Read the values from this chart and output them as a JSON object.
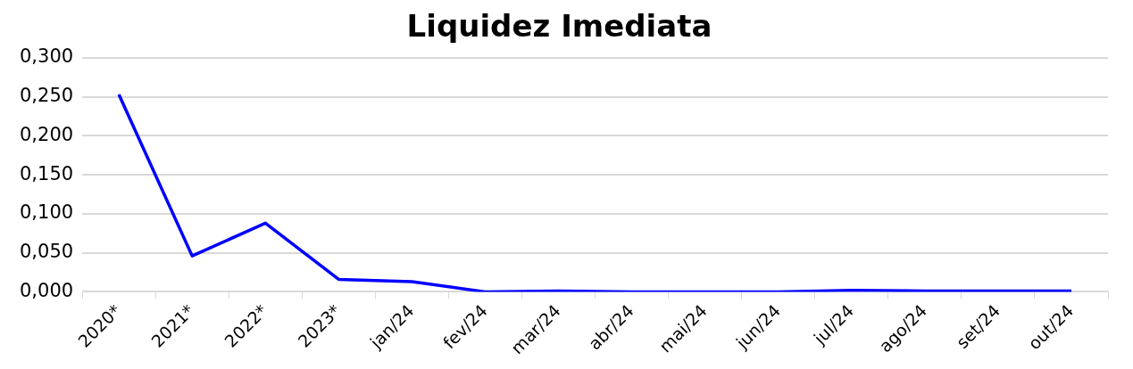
{
  "chart_data": {
    "type": "line",
    "title": "Liquidez Imediata",
    "categories": [
      "2020*",
      "2021*",
      "2022*",
      "2023*",
      "jan/24",
      "fev/24",
      "mar/24",
      "abr/24",
      "mai/24",
      "jun/24",
      "jul/24",
      "ago/24",
      "set/24",
      "out/24"
    ],
    "series": [
      {
        "color": "#0000ff",
        "values": [
          0.253,
          0.046,
          0.088,
          0.016,
          0.013,
          0.0,
          0.001,
          0.0,
          0.0,
          0.0,
          0.002,
          0.001,
          0.001,
          0.001
        ]
      }
    ],
    "ylim": [
      0,
      0.3
    ],
    "yticks": [
      {
        "value": 0,
        "label": "0,000"
      },
      {
        "value": 0.05,
        "label": "0,050"
      },
      {
        "value": 0.1,
        "label": "0,100"
      },
      {
        "value": 0.15,
        "label": "0,150"
      },
      {
        "value": 0.2,
        "label": "0,200"
      },
      {
        "value": 0.25,
        "label": "0,250"
      },
      {
        "value": 0.3,
        "label": "0,300"
      }
    ],
    "grid": "y"
  }
}
